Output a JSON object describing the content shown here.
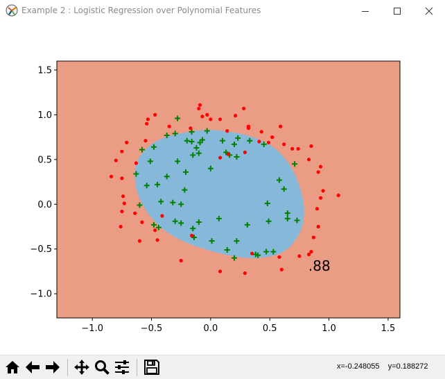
{
  "window": {
    "title": "Example 2 : Logistic Regression over Polynomial Features",
    "app_icon": "matplotlib-icon",
    "controls": [
      "minimize-icon",
      "maximize-icon",
      "close-icon"
    ]
  },
  "toolbar": {
    "buttons": [
      "home-icon",
      "back-icon",
      "forward-icon",
      "pan-icon",
      "zoom-icon",
      "configure-subplots-icon",
      "save-icon"
    ],
    "coordinates": "x=-0.248055    y=0.188272"
  },
  "colors": {
    "region_negative": "#eb9c85",
    "region_positive": "#86b9d9",
    "class_negative_marker": "#ff0000",
    "class_positive_marker": "#008000"
  },
  "chart_data": {
    "type": "scatter",
    "title": "",
    "xlabel": "",
    "ylabel": "",
    "xlim": [
      -1.3,
      1.6
    ],
    "ylim": [
      -1.27,
      1.6
    ],
    "xticks": [
      "−1.0",
      "−0.5",
      "0.0",
      "0.5",
      "1.0",
      "1.5"
    ],
    "xtick_values": [
      -1.0,
      -0.5,
      0.0,
      0.5,
      1.0,
      1.5
    ],
    "yticks": [
      "1.5",
      "1.0",
      "0.5",
      "0.0",
      "−0.5",
      "−1.0"
    ],
    "ytick_values": [
      1.5,
      1.0,
      0.5,
      0.0,
      -0.5,
      -1.0
    ],
    "grid": false,
    "annotation": {
      "text": ".88",
      "x": 0.92,
      "y": -0.69
    },
    "decision_boundary": [
      [
        -0.64,
        0.38
      ],
      [
        -0.6,
        0.53
      ],
      [
        -0.5,
        0.67
      ],
      [
        -0.38,
        0.75
      ],
      [
        -0.22,
        0.8
      ],
      [
        -0.05,
        0.83
      ],
      [
        0.1,
        0.82
      ],
      [
        0.28,
        0.78
      ],
      [
        0.45,
        0.7
      ],
      [
        0.58,
        0.58
      ],
      [
        0.69,
        0.39
      ],
      [
        0.76,
        0.16
      ],
      [
        0.79,
        -0.06
      ],
      [
        0.77,
        -0.26
      ],
      [
        0.7,
        -0.43
      ],
      [
        0.6,
        -0.54
      ],
      [
        0.47,
        -0.59
      ],
      [
        0.32,
        -0.6
      ],
      [
        0.15,
        -0.57
      ],
      [
        -0.05,
        -0.5
      ],
      [
        -0.22,
        -0.42
      ],
      [
        -0.38,
        -0.3
      ],
      [
        -0.5,
        -0.15
      ],
      [
        -0.58,
        0.01
      ],
      [
        -0.63,
        0.18
      ]
    ],
    "series": [
      {
        "name": "",
        "class": 1,
        "marker": "+",
        "points": [
          [
            -0.28,
            0.96
          ],
          [
            -0.16,
            0.81
          ],
          [
            -0.07,
            0.72
          ],
          [
            -0.03,
            0.82
          ],
          [
            0.1,
            0.71
          ],
          [
            0.33,
            0.71
          ],
          [
            0.45,
            0.67
          ],
          [
            0.23,
            0.74
          ],
          [
            0.2,
            0.67
          ],
          [
            0.13,
            0.58
          ],
          [
            0.16,
            0.55
          ],
          [
            0.22,
            0.53
          ],
          [
            -0.3,
            0.79
          ],
          [
            -0.37,
            0.77
          ],
          [
            -0.48,
            0.64
          ],
          [
            -0.58,
            0.61
          ],
          [
            -0.51,
            0.48
          ],
          [
            -0.28,
            0.48
          ],
          [
            -0.2,
            0.71
          ],
          [
            -0.16,
            0.7
          ],
          [
            -0.15,
            0.55
          ],
          [
            -0.1,
            0.57
          ],
          [
            -0.09,
            0.69
          ],
          [
            -0.12,
            0.63
          ],
          [
            0.0,
            0.4
          ],
          [
            -0.63,
            0.34
          ],
          [
            -0.54,
            0.21
          ],
          [
            -0.45,
            0.22
          ],
          [
            -0.37,
            0.31
          ],
          [
            -0.21,
            0.36
          ],
          [
            -0.22,
            0.16
          ],
          [
            -0.42,
            0.03
          ],
          [
            -0.32,
            0.02
          ],
          [
            -0.25,
            0.0
          ],
          [
            -0.6,
            -0.01
          ],
          [
            -0.48,
            -0.23
          ],
          [
            -0.44,
            -0.26
          ],
          [
            -0.3,
            -0.19
          ],
          [
            -0.25,
            -0.21
          ],
          [
            -0.15,
            -0.27
          ],
          [
            -0.1,
            -0.2
          ],
          [
            0.07,
            -0.16
          ],
          [
            -0.14,
            -0.37
          ],
          [
            0.01,
            -0.41
          ],
          [
            0.14,
            -0.51
          ],
          [
            0.2,
            -0.6
          ],
          [
            0.31,
            -0.23
          ],
          [
            0.22,
            -0.41
          ],
          [
            0.38,
            -0.56
          ],
          [
            0.47,
            -0.53
          ],
          [
            0.48,
            0.01
          ],
          [
            0.49,
            -0.19
          ],
          [
            0.53,
            -0.53
          ],
          [
            0.58,
            0.27
          ],
          [
            0.62,
            0.17
          ],
          [
            0.65,
            -0.1
          ],
          [
            0.65,
            -0.16
          ],
          [
            0.73,
            -0.18
          ],
          [
            0.71,
            0.45
          ],
          [
            0.4,
            -0.57
          ]
        ]
      },
      {
        "name": "",
        "class": 0,
        "marker": "o",
        "points": [
          [
            -0.47,
            1.0
          ],
          [
            -0.53,
            0.95
          ],
          [
            -0.54,
            0.9
          ],
          [
            -0.55,
            0.71
          ],
          [
            -0.71,
            0.69
          ],
          [
            -0.75,
            0.59
          ],
          [
            -0.8,
            0.49
          ],
          [
            -0.63,
            0.46
          ],
          [
            -0.84,
            0.31
          ],
          [
            -0.75,
            0.29
          ],
          [
            -0.74,
            0.09
          ],
          [
            -0.73,
            0.01
          ],
          [
            -0.75,
            -0.08
          ],
          [
            -0.76,
            -0.25
          ],
          [
            -0.64,
            -0.1
          ],
          [
            -0.58,
            -0.2
          ],
          [
            -0.6,
            -0.41
          ],
          [
            -0.47,
            -0.29
          ],
          [
            -0.45,
            -0.4
          ],
          [
            -0.41,
            -0.13
          ],
          [
            -0.25,
            -0.63
          ],
          [
            -0.16,
            -0.35
          ],
          [
            0.08,
            -0.75
          ],
          [
            0.29,
            -0.77
          ],
          [
            0.35,
            -0.55
          ],
          [
            0.6,
            -0.73
          ],
          [
            0.58,
            -0.59
          ],
          [
            0.75,
            -0.58
          ],
          [
            0.83,
            -0.56
          ],
          [
            0.85,
            -0.53
          ],
          [
            0.87,
            -0.37
          ],
          [
            0.91,
            -0.25
          ],
          [
            0.9,
            -0.05
          ],
          [
            0.93,
            0.07
          ],
          [
            0.95,
            0.15
          ],
          [
            1.08,
            0.1
          ],
          [
            0.91,
            0.36
          ],
          [
            0.93,
            0.42
          ],
          [
            0.83,
            0.5
          ],
          [
            0.85,
            0.65
          ],
          [
            0.74,
            0.62
          ],
          [
            0.69,
            0.62
          ],
          [
            0.62,
            0.67
          ],
          [
            0.43,
            0.81
          ],
          [
            0.52,
            0.75
          ],
          [
            0.59,
            0.87
          ],
          [
            0.49,
            0.69
          ],
          [
            0.41,
            0.7
          ],
          [
            0.29,
            0.58
          ],
          [
            0.32,
            0.85
          ],
          [
            0.28,
            1.07
          ],
          [
            0.08,
            0.95
          ],
          [
            -0.03,
            1.0
          ],
          [
            -0.07,
            0.98
          ],
          [
            -0.1,
            1.07
          ],
          [
            -0.09,
            1.11
          ],
          [
            0.0,
            0.95
          ],
          [
            0.14,
            0.82
          ],
          [
            0.21,
            0.99
          ],
          [
            0.32,
            0.87
          ],
          [
            -0.17,
            0.85
          ],
          [
            -0.35,
            0.87
          ],
          [
            0.15,
            0.56
          ],
          [
            0.08,
            0.52
          ]
        ]
      }
    ]
  }
}
